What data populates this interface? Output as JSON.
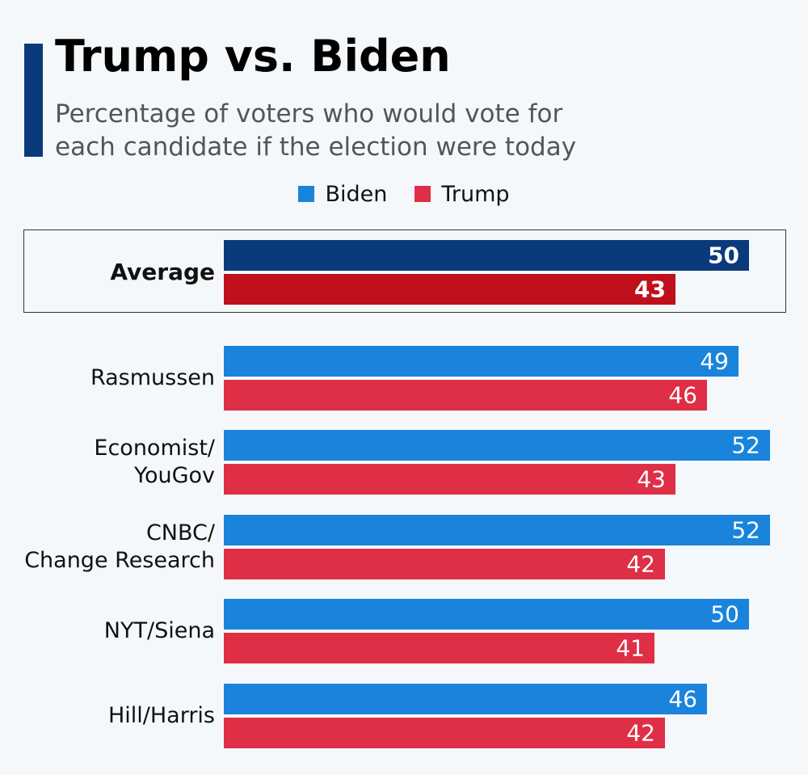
{
  "header": {
    "title": "Trump vs. Biden",
    "subtitle_line1": "Percentage of voters who would vote for",
    "subtitle_line2": "each candidate if the election were today"
  },
  "legend": [
    {
      "label": "Biden",
      "color": "#1a84dc"
    },
    {
      "label": "Trump",
      "color": "#df2f46"
    }
  ],
  "colors": {
    "accent": "#0b3a7c",
    "biden": "#1a84dc",
    "trump": "#df2f46",
    "biden_average": "#0b3a7c",
    "trump_average": "#c0101b"
  },
  "chart_data": {
    "type": "bar",
    "orientation": "horizontal",
    "title": "Trump vs. Biden",
    "subtitle": "Percentage of voters who would vote for each candidate if the election were today",
    "categories": [
      {
        "lines": [
          "Average"
        ],
        "highlight": true
      },
      {
        "lines": [
          "Rasmussen"
        ]
      },
      {
        "lines": [
          "Economist/",
          "YouGov"
        ]
      },
      {
        "lines": [
          "CNBC/",
          "Change Research"
        ]
      },
      {
        "lines": [
          "NYT/Siena"
        ]
      },
      {
        "lines": [
          "Hill/Harris"
        ]
      }
    ],
    "series": [
      {
        "name": "Biden",
        "values": [
          50,
          49,
          52,
          52,
          50,
          46
        ]
      },
      {
        "name": "Trump",
        "values": [
          43,
          46,
          43,
          42,
          41,
          42
        ]
      }
    ],
    "xlim": [
      0,
      52
    ],
    "xlabel": "",
    "ylabel": "",
    "grid": false,
    "legend_position": "top-center"
  }
}
